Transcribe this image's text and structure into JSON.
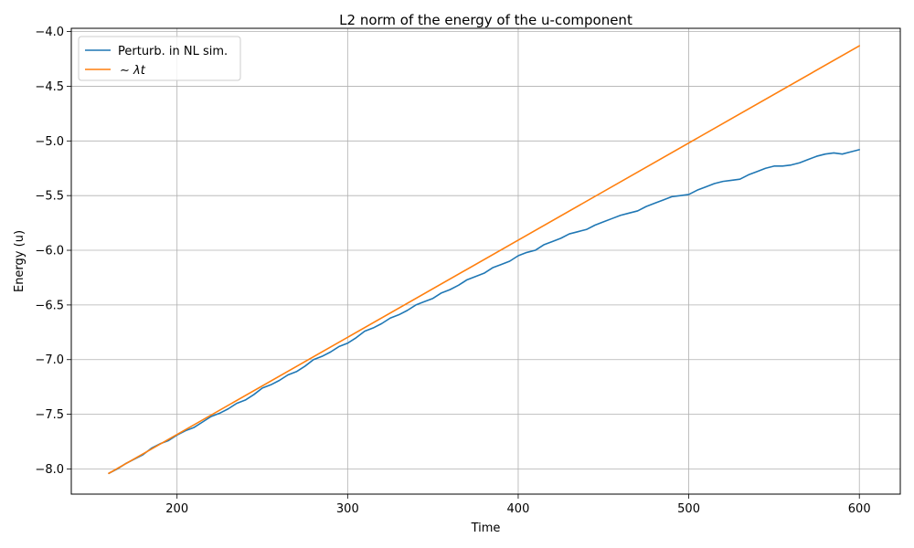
{
  "chart_data": {
    "type": "line",
    "title": "L2 norm of the energy of the u-component",
    "xlabel": "Time",
    "ylabel": "Energy (u)",
    "xlim": [
      138,
      624
    ],
    "ylim": [
      -8.23,
      -3.97
    ],
    "xticks": [
      200,
      300,
      400,
      500,
      600
    ],
    "xtick_labels": [
      "200",
      "300",
      "400",
      "500",
      "600"
    ],
    "yticks": [
      -8.0,
      -7.5,
      -7.0,
      -6.5,
      -6.0,
      -5.5,
      -5.0,
      -4.5,
      -4.0
    ],
    "ytick_labels": [
      "−8.0",
      "−7.5",
      "−7.0",
      "−6.5",
      "−6.0",
      "−5.5",
      "−5.0",
      "−4.5",
      "−4.0"
    ],
    "grid": true,
    "legend_position": "top-left",
    "series": [
      {
        "name": "Perturb. in NL sim.",
        "color": "#1f77b4",
        "x": [
          160,
          165,
          170,
          175,
          180,
          185,
          190,
          195,
          200,
          205,
          210,
          215,
          220,
          225,
          230,
          235,
          240,
          245,
          250,
          255,
          260,
          265,
          270,
          275,
          280,
          285,
          290,
          295,
          300,
          305,
          310,
          315,
          320,
          325,
          330,
          335,
          340,
          345,
          350,
          355,
          360,
          365,
          370,
          375,
          380,
          385,
          390,
          395,
          400,
          405,
          410,
          415,
          420,
          425,
          430,
          435,
          440,
          445,
          450,
          455,
          460,
          465,
          470,
          475,
          480,
          485,
          490,
          495,
          500,
          505,
          510,
          515,
          520,
          525,
          530,
          535,
          540,
          545,
          550,
          555,
          560,
          565,
          570,
          575,
          580,
          585,
          590,
          595,
          600
        ],
        "y": [
          -8.04,
          -8.0,
          -7.95,
          -7.91,
          -7.87,
          -7.81,
          -7.77,
          -7.74,
          -7.69,
          -7.65,
          -7.62,
          -7.57,
          -7.52,
          -7.49,
          -7.45,
          -7.4,
          -7.37,
          -7.32,
          -7.26,
          -7.23,
          -7.19,
          -7.14,
          -7.11,
          -7.06,
          -7.0,
          -6.97,
          -6.93,
          -6.88,
          -6.85,
          -6.8,
          -6.74,
          -6.71,
          -6.67,
          -6.62,
          -6.59,
          -6.55,
          -6.5,
          -6.47,
          -6.44,
          -6.39,
          -6.36,
          -6.32,
          -6.27,
          -6.24,
          -6.21,
          -6.16,
          -6.13,
          -6.1,
          -6.05,
          -6.02,
          -6.0,
          -5.95,
          -5.92,
          -5.89,
          -5.85,
          -5.83,
          -5.81,
          -5.77,
          -5.74,
          -5.71,
          -5.68,
          -5.66,
          -5.64,
          -5.6,
          -5.57,
          -5.54,
          -5.51,
          -5.5,
          -5.49,
          -5.45,
          -5.42,
          -5.39,
          -5.37,
          -5.36,
          -5.35,
          -5.31,
          -5.28,
          -5.25,
          -5.23,
          -5.23,
          -5.22,
          -5.2,
          -5.17,
          -5.14,
          -5.12,
          -5.11,
          -5.12,
          -5.1,
          -5.08
        ]
      },
      {
        "name": "$\\sim \\lambda t$",
        "display_name": "∼ λt",
        "color": "#ff7f0e",
        "x": [
          160,
          600
        ],
        "y": [
          -8.04,
          -4.13
        ]
      }
    ]
  }
}
